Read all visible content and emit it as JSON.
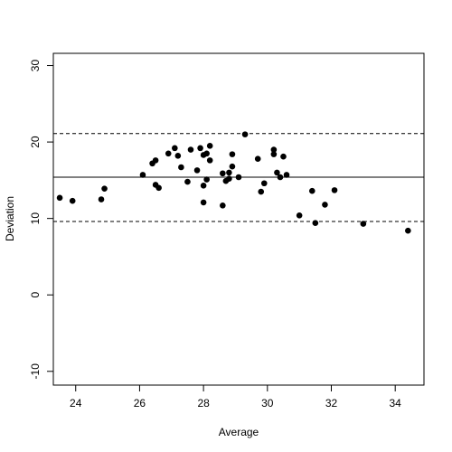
{
  "chart_data": {
    "type": "scatter",
    "title": "",
    "xlabel": "Average",
    "ylabel": "Deviation",
    "xlim": [
      23.3,
      34.9
    ],
    "ylim": [
      -11.8,
      31.6
    ],
    "xticks": [
      24,
      26,
      28,
      30,
      32,
      34
    ],
    "yticks": [
      -10,
      0,
      10,
      20,
      30
    ],
    "grid": false,
    "reference_lines": [
      {
        "kind": "mean",
        "y": 15.4,
        "style": "solid"
      },
      {
        "kind": "upper-limit",
        "y": 21.1,
        "style": "dashed"
      },
      {
        "kind": "lower-limit",
        "y": 9.6,
        "style": "dashed"
      }
    ],
    "points": [
      {
        "x": 23.5,
        "y": 12.7
      },
      {
        "x": 23.9,
        "y": 12.3
      },
      {
        "x": 24.8,
        "y": 12.5
      },
      {
        "x": 24.9,
        "y": 13.9
      },
      {
        "x": 26.1,
        "y": 15.7
      },
      {
        "x": 26.4,
        "y": 17.2
      },
      {
        "x": 26.5,
        "y": 17.6
      },
      {
        "x": 26.5,
        "y": 14.4
      },
      {
        "x": 26.6,
        "y": 14.0
      },
      {
        "x": 26.9,
        "y": 18.5
      },
      {
        "x": 27.1,
        "y": 19.2
      },
      {
        "x": 27.2,
        "y": 18.2
      },
      {
        "x": 27.3,
        "y": 16.7
      },
      {
        "x": 27.5,
        "y": 14.8
      },
      {
        "x": 27.6,
        "y": 19.0
      },
      {
        "x": 27.8,
        "y": 16.3
      },
      {
        "x": 27.9,
        "y": 19.2
      },
      {
        "x": 28.0,
        "y": 18.3
      },
      {
        "x": 28.0,
        "y": 14.3
      },
      {
        "x": 28.0,
        "y": 12.1
      },
      {
        "x": 28.1,
        "y": 18.5
      },
      {
        "x": 28.1,
        "y": 15.1
      },
      {
        "x": 28.2,
        "y": 17.6
      },
      {
        "x": 28.2,
        "y": 19.5
      },
      {
        "x": 28.6,
        "y": 15.9
      },
      {
        "x": 28.6,
        "y": 11.7
      },
      {
        "x": 28.7,
        "y": 14.9
      },
      {
        "x": 28.8,
        "y": 16.0
      },
      {
        "x": 28.8,
        "y": 15.2
      },
      {
        "x": 28.9,
        "y": 18.4
      },
      {
        "x": 28.9,
        "y": 16.8
      },
      {
        "x": 29.1,
        "y": 15.4
      },
      {
        "x": 29.3,
        "y": 21.0
      },
      {
        "x": 29.7,
        "y": 17.8
      },
      {
        "x": 29.8,
        "y": 13.5
      },
      {
        "x": 29.9,
        "y": 14.6
      },
      {
        "x": 30.2,
        "y": 18.4
      },
      {
        "x": 30.2,
        "y": 19.0
      },
      {
        "x": 30.3,
        "y": 16.0
      },
      {
        "x": 30.4,
        "y": 15.4
      },
      {
        "x": 30.5,
        "y": 18.1
      },
      {
        "x": 30.6,
        "y": 15.7
      },
      {
        "x": 31.0,
        "y": 10.4
      },
      {
        "x": 31.4,
        "y": 13.6
      },
      {
        "x": 31.5,
        "y": 9.4
      },
      {
        "x": 31.8,
        "y": 11.8
      },
      {
        "x": 32.1,
        "y": 13.7
      },
      {
        "x": 33.0,
        "y": 9.3
      },
      {
        "x": 34.4,
        "y": 8.4
      }
    ]
  }
}
